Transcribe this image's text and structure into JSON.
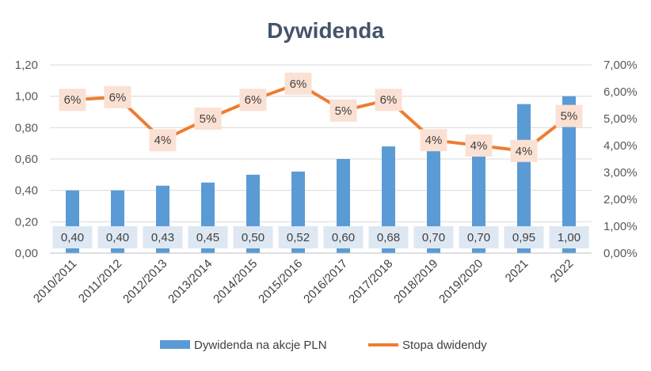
{
  "chart_data": {
    "type": "bar",
    "title": "Dywidenda",
    "categories": [
      "2010/2011",
      "2011/2012",
      "2012/2013",
      "2013/2014",
      "2014/2015",
      "2015/2016",
      "2016/2017",
      "2017/2018",
      "2018/2019",
      "2019/2020",
      "2021",
      "2022"
    ],
    "series": [
      {
        "name": "Dywidenda na akcje PLN",
        "type": "bar",
        "axis": "left",
        "color": "#5b9bd5",
        "values": [
          0.4,
          0.4,
          0.43,
          0.45,
          0.5,
          0.52,
          0.6,
          0.68,
          0.7,
          0.7,
          0.95,
          1.0
        ],
        "labels": [
          "0,40",
          "0,40",
          "0,43",
          "0,45",
          "0,50",
          "0,52",
          "0,60",
          "0,68",
          "0,70",
          "0,70",
          "0,95",
          "1,00"
        ]
      },
      {
        "name": "Stopa dwidendy",
        "type": "line",
        "axis": "right",
        "color": "#ed7d31",
        "values": [
          0.057,
          0.058,
          0.042,
          0.05,
          0.057,
          0.063,
          0.053,
          0.057,
          0.042,
          0.04,
          0.038,
          0.051
        ],
        "labels": [
          "6%",
          "6%",
          "4%",
          "5%",
          "6%",
          "6%",
          "5%",
          "6%",
          "4%",
          "4%",
          "4%",
          "5%"
        ]
      }
    ],
    "y_left": {
      "min": 0,
      "max": 1.2,
      "step": 0.2,
      "ticks": [
        "0,00",
        "0,20",
        "0,40",
        "0,60",
        "0,80",
        "1,00",
        "1,20"
      ]
    },
    "y_right": {
      "min": 0,
      "max": 0.07,
      "step": 0.01,
      "ticks": [
        "0,00%",
        "1,00%",
        "2,00%",
        "3,00%",
        "4,00%",
        "5,00%",
        "6,00%",
        "7,00%"
      ]
    },
    "grid": true,
    "legend_position": "bottom"
  }
}
